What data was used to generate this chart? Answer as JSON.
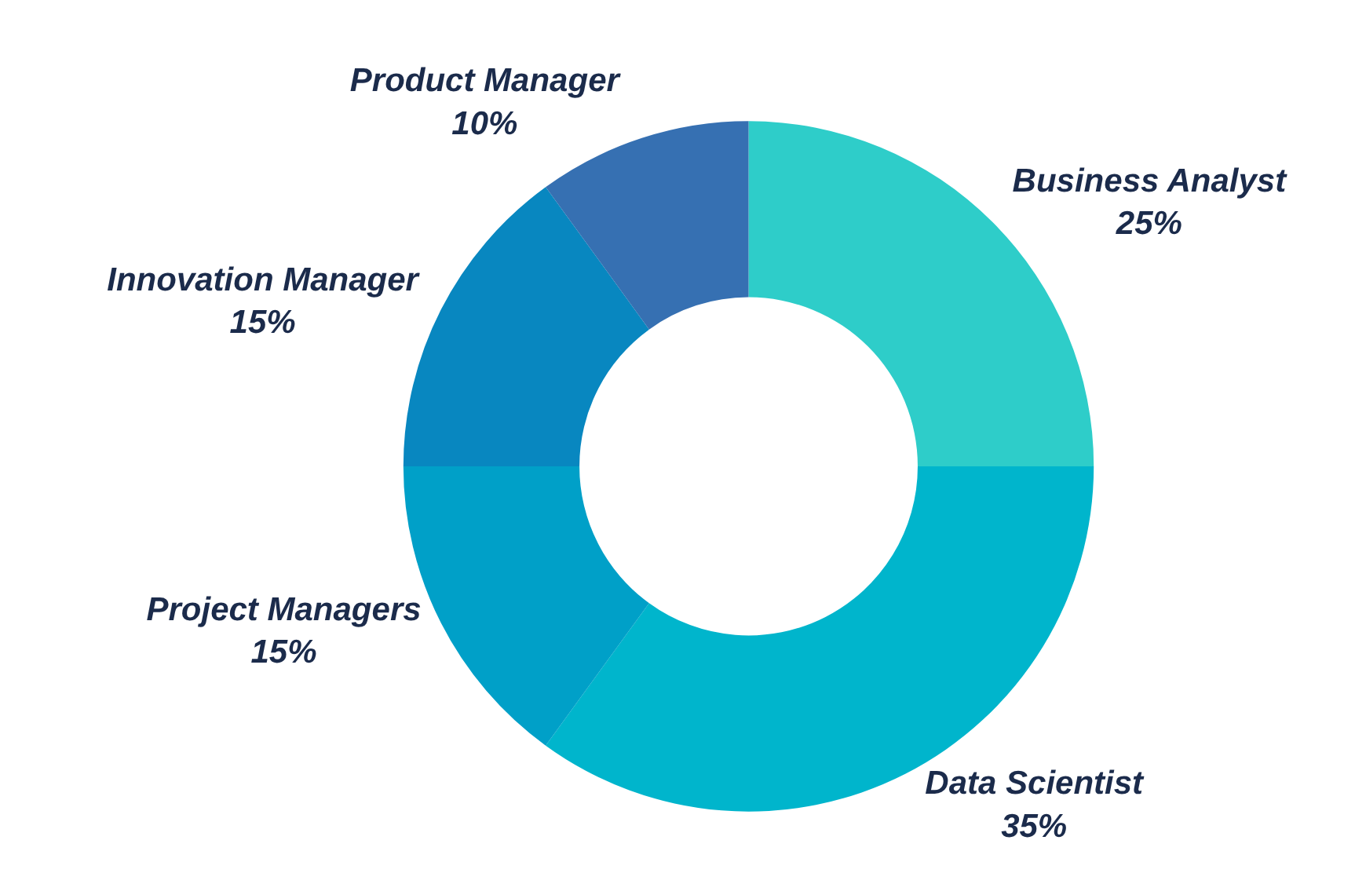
{
  "chart_data": {
    "type": "donut",
    "categories": [
      "Business Analyst",
      "Data Scientist",
      "Project Managers",
      "Innovation Manager",
      "Product Manager"
    ],
    "values": [
      25,
      35,
      15,
      15,
      10
    ],
    "value_labels": [
      "25%",
      "35%",
      "15%",
      "15%",
      "10%"
    ],
    "colors": [
      "#2ecdc9",
      "#00b5cc",
      "#00a0c8",
      "#0887c0",
      "#3670b2"
    ],
    "legend": false
  }
}
